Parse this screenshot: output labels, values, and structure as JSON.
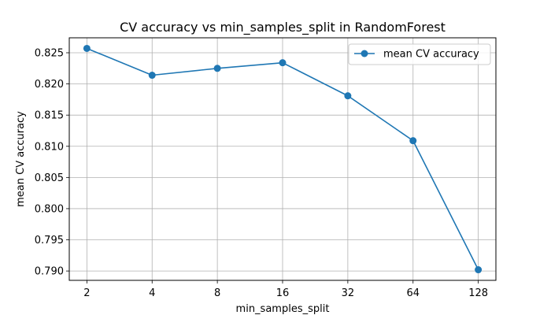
{
  "chart_data": {
    "type": "line",
    "title": "CV accuracy vs min_samples_split in RandomForest",
    "xlabel": "min_samples_split",
    "ylabel": "mean CV accuracy",
    "x": [
      2,
      4,
      8,
      16,
      32,
      64,
      128
    ],
    "x_scale": "log2",
    "x_tick_labels": [
      "2",
      "4",
      "8",
      "16",
      "32",
      "64",
      "128"
    ],
    "y_ticks": [
      0.79,
      0.795,
      0.8,
      0.805,
      0.81,
      0.815,
      0.82,
      0.825
    ],
    "y_tick_labels": [
      "0.790",
      "0.795",
      "0.800",
      "0.805",
      "0.810",
      "0.815",
      "0.820",
      "0.825"
    ],
    "ylim": [
      0.7885,
      0.8274
    ],
    "grid": true,
    "legend_position": "top-right",
    "series": [
      {
        "name": "mean CV accuracy",
        "color": "#1f77b4",
        "marker": "circle",
        "values": [
          0.8257,
          0.8214,
          0.8225,
          0.8234,
          0.8181,
          0.8109,
          0.7902
        ]
      }
    ]
  }
}
